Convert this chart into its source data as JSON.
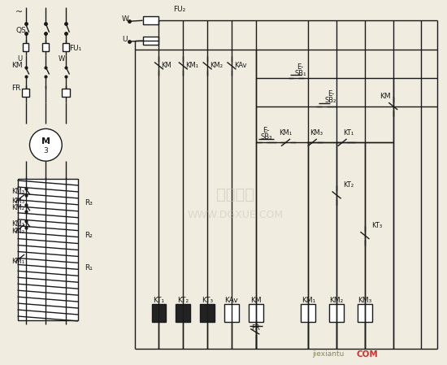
{
  "bg_color": "#f0ece0",
  "line_color": "#1a1a1a",
  "fig_width": 5.5,
  "fig_height": 4.49,
  "dpi": 100,
  "watermark1": "电工学网",
  "watermark2": "WWW.DGXUE.COM",
  "watermark_color": "#c8c4b0",
  "brand1": "jiexiantu",
  "brand2": "COM",
  "brand_color1": "#888855",
  "brand_color2": "#cc3333"
}
